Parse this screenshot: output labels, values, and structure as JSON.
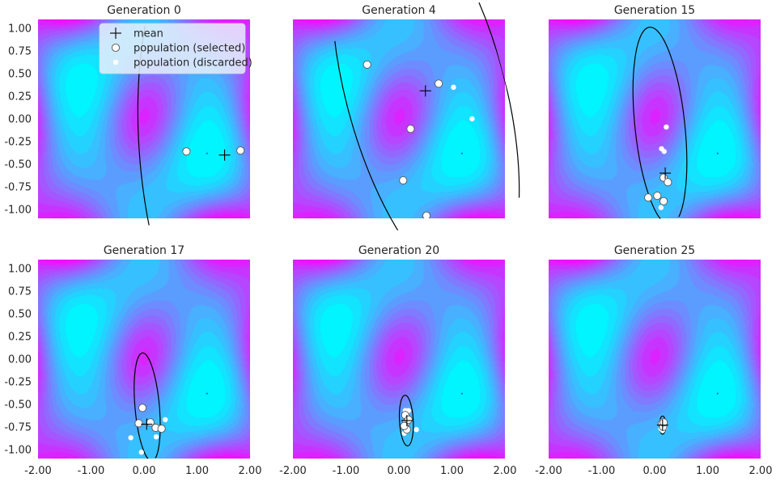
{
  "chart_data": {
    "type": "scatter",
    "figure_title": "",
    "xlim": [
      -2.0,
      2.0
    ],
    "ylim": [
      -1.1,
      1.1
    ],
    "xticks": [
      "-2.00",
      "-1.00",
      "0.00",
      "1.00",
      "2.00"
    ],
    "yticks": [
      "1.00",
      "0.75",
      "0.50",
      "0.25",
      "0.00",
      "-0.25",
      "-0.50",
      "-0.75",
      "-1.00"
    ],
    "xtick_values": [
      -2,
      -1,
      0,
      1,
      2
    ],
    "ytick_values": [
      1.0,
      0.75,
      0.5,
      0.25,
      0.0,
      -0.25,
      -0.5,
      -0.75,
      -1.0
    ],
    "background": "contour heatmap of objective (cyan = low, magenta = high)",
    "colors": {
      "low": "#00f4ff",
      "mid": "#6b95ff",
      "high": "#e52dff",
      "marker_edge": "#555555",
      "ellipse": "#000000"
    },
    "legend": {
      "location": "upper-center of first panel",
      "entries": [
        {
          "label": "mean",
          "marker": "plus"
        },
        {
          "label": "population (selected)",
          "marker": "white-circle-outlined"
        },
        {
          "label": "population (discarded)",
          "marker": "white-dot"
        }
      ]
    },
    "panels": [
      {
        "title": "Generation 0",
        "mean": [
          1.52,
          -0.4
        ],
        "selected": [
          [
            0.8,
            -0.36
          ],
          [
            1.82,
            -0.35
          ]
        ],
        "discarded": [],
        "ellipse": {
          "cx": 1.52,
          "cy": -0.4,
          "rx": 1.6,
          "ry": 2.5,
          "angle": 5
        }
      },
      {
        "title": "Generation 4",
        "mean": [
          0.5,
          0.31
        ],
        "selected": [
          [
            -0.6,
            0.6
          ],
          [
            0.75,
            0.39
          ],
          [
            0.22,
            -0.11
          ],
          [
            0.08,
            -0.68
          ],
          [
            0.52,
            -1.07
          ]
        ],
        "discarded": [
          [
            1.03,
            0.35
          ],
          [
            1.38,
            0.0
          ]
        ],
        "ellipse": {
          "cx": 0.5,
          "cy": 0.31,
          "rx": 1.5,
          "ry": 2.3,
          "angle": 15
        }
      },
      {
        "title": "Generation 15",
        "mean": [
          0.2,
          -0.6
        ],
        "selected": [
          [
            0.17,
            -0.65
          ],
          [
            0.25,
            -0.7
          ],
          [
            0.05,
            -0.85
          ],
          [
            -0.12,
            -0.87
          ],
          [
            0.17,
            -0.91
          ]
        ],
        "discarded": [
          [
            0.22,
            -0.09
          ],
          [
            0.13,
            -0.33
          ],
          [
            0.18,
            -0.36
          ],
          [
            0.12,
            -0.98
          ]
        ],
        "ellipse": {
          "cx": 0.1,
          "cy": -0.08,
          "rx": 0.47,
          "ry": 1.1,
          "angle": 6
        }
      },
      {
        "title": "Generation 17",
        "mean": [
          0.05,
          -0.72
        ],
        "selected": [
          [
            -0.03,
            -0.54
          ],
          [
            -0.1,
            -0.71
          ],
          [
            0.12,
            -0.7
          ],
          [
            0.22,
            -0.76
          ],
          [
            0.33,
            -0.77
          ]
        ],
        "discarded": [
          [
            0.4,
            -0.67
          ],
          [
            -0.25,
            -0.87
          ],
          [
            0.23,
            -0.86
          ],
          [
            -0.05,
            -1.03
          ]
        ],
        "ellipse": {
          "cx": 0.06,
          "cy": -0.53,
          "rx": 0.23,
          "ry": 0.6,
          "angle": 5
        }
      },
      {
        "title": "Generation 20",
        "mean": [
          0.15,
          -0.68
        ],
        "selected": [
          [
            0.12,
            -0.62
          ],
          [
            0.14,
            -0.7
          ],
          [
            0.18,
            -0.67
          ],
          [
            0.15,
            -0.78
          ],
          [
            0.1,
            -0.74
          ]
        ],
        "discarded": [
          [
            0.18,
            -0.57
          ],
          [
            0.1,
            -0.82
          ],
          [
            0.33,
            -0.78
          ],
          [
            0.12,
            -0.57
          ]
        ],
        "ellipse": {
          "cx": 0.14,
          "cy": -0.68,
          "rx": 0.13,
          "ry": 0.28,
          "angle": 3
        }
      },
      {
        "title": "Generation 25",
        "mean": [
          0.15,
          -0.73
        ],
        "selected": [
          [
            0.14,
            -0.71
          ],
          [
            0.16,
            -0.75
          ],
          [
            0.17,
            -0.7
          ]
        ],
        "discarded": [
          [
            0.12,
            -0.77
          ],
          [
            0.19,
            -0.76
          ],
          [
            0.15,
            -0.79
          ],
          [
            0.13,
            -0.69
          ]
        ],
        "ellipse": {
          "cx": 0.15,
          "cy": -0.73,
          "rx": 0.06,
          "ry": 0.1,
          "angle": 0
        }
      }
    ]
  }
}
